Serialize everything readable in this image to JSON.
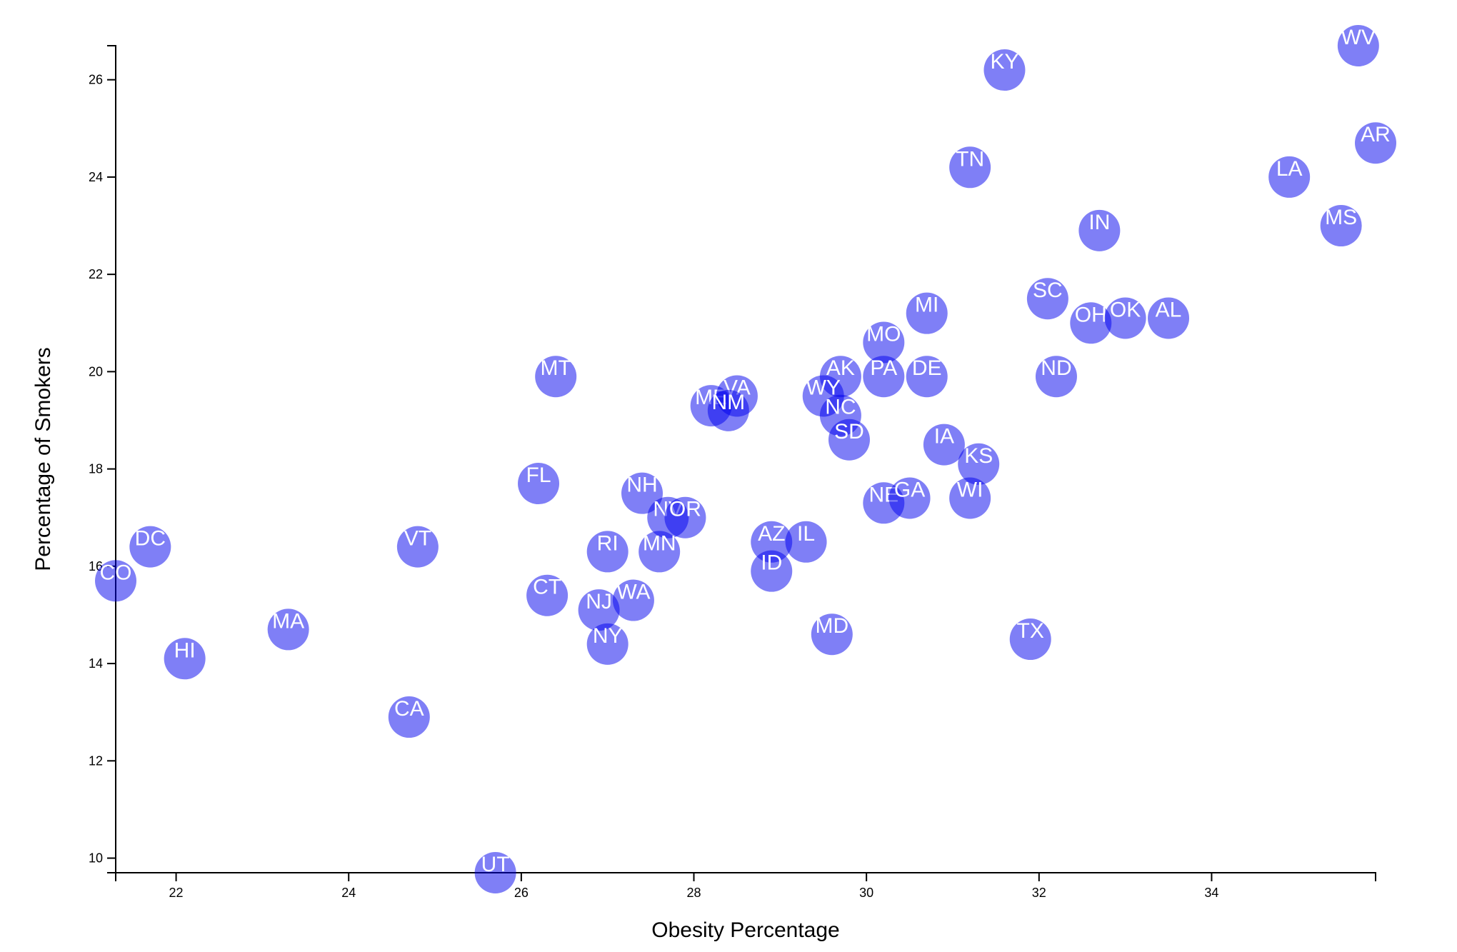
{
  "chart_data": {
    "type": "scatter",
    "title": "",
    "xlabel": "Obesity Percentage",
    "ylabel": "Percentage of Smokers",
    "xlim": [
      21.3,
      35.9
    ],
    "ylim": [
      9.7,
      26.7
    ],
    "x_ticks": [
      "22",
      "24",
      "26",
      "28",
      "30",
      "32",
      "34"
    ],
    "y_ticks": [
      "10",
      "12",
      "14",
      "16",
      "18",
      "20",
      "22",
      "24",
      "26"
    ],
    "grid": false,
    "point_color": "#0000ee",
    "label_color": "#ffffff",
    "points": [
      {
        "label": "WV",
        "x": 35.7,
        "y": 26.7
      },
      {
        "label": "KY",
        "x": 31.6,
        "y": 26.2
      },
      {
        "label": "AR",
        "x": 35.9,
        "y": 24.7
      },
      {
        "label": "TN",
        "x": 31.2,
        "y": 24.2
      },
      {
        "label": "LA",
        "x": 34.9,
        "y": 24.0
      },
      {
        "label": "MS",
        "x": 35.5,
        "y": 23.0
      },
      {
        "label": "IN",
        "x": 32.7,
        "y": 22.9
      },
      {
        "label": "SC",
        "x": 32.1,
        "y": 21.5
      },
      {
        "label": "MI",
        "x": 30.7,
        "y": 21.2
      },
      {
        "label": "OH",
        "x": 32.6,
        "y": 21.0
      },
      {
        "label": "OK",
        "x": 33.0,
        "y": 21.1
      },
      {
        "label": "AL",
        "x": 33.5,
        "y": 21.1
      },
      {
        "label": "MO",
        "x": 30.2,
        "y": 20.6
      },
      {
        "label": "AK",
        "x": 29.7,
        "y": 19.9
      },
      {
        "label": "PA",
        "x": 30.2,
        "y": 19.9
      },
      {
        "label": "DE",
        "x": 30.7,
        "y": 19.9
      },
      {
        "label": "ND",
        "x": 32.2,
        "y": 19.9
      },
      {
        "label": "MT",
        "x": 26.4,
        "y": 19.9
      },
      {
        "label": "ME",
        "x": 28.2,
        "y": 19.3
      },
      {
        "label": "VA",
        "x": 28.5,
        "y": 19.5
      },
      {
        "label": "NM",
        "x": 28.4,
        "y": 19.2
      },
      {
        "label": "WY",
        "x": 29.5,
        "y": 19.5
      },
      {
        "label": "NC",
        "x": 29.7,
        "y": 19.1
      },
      {
        "label": "SD",
        "x": 29.8,
        "y": 18.6
      },
      {
        "label": "IA",
        "x": 30.9,
        "y": 18.5
      },
      {
        "label": "KS",
        "x": 31.3,
        "y": 18.1
      },
      {
        "label": "FL",
        "x": 26.2,
        "y": 17.7
      },
      {
        "label": "NH",
        "x": 27.4,
        "y": 17.5
      },
      {
        "label": "NE",
        "x": 30.2,
        "y": 17.3
      },
      {
        "label": "GA",
        "x": 30.5,
        "y": 17.4
      },
      {
        "label": "WI",
        "x": 31.2,
        "y": 17.4
      },
      {
        "label": "NV",
        "x": 27.7,
        "y": 17.0
      },
      {
        "label": "OR",
        "x": 27.9,
        "y": 17.0
      },
      {
        "label": "AZ",
        "x": 28.9,
        "y": 16.5
      },
      {
        "label": "IL",
        "x": 29.3,
        "y": 16.5
      },
      {
        "label": "DC",
        "x": 21.7,
        "y": 16.4
      },
      {
        "label": "VT",
        "x": 24.8,
        "y": 16.4
      },
      {
        "label": "RI",
        "x": 27.0,
        "y": 16.3
      },
      {
        "label": "MN",
        "x": 27.6,
        "y": 16.3
      },
      {
        "label": "ID",
        "x": 28.9,
        "y": 15.9
      },
      {
        "label": "CO",
        "x": 21.3,
        "y": 15.7
      },
      {
        "label": "CT",
        "x": 26.3,
        "y": 15.4
      },
      {
        "label": "WA",
        "x": 27.3,
        "y": 15.3
      },
      {
        "label": "NJ",
        "x": 26.9,
        "y": 15.1
      },
      {
        "label": "MA",
        "x": 23.3,
        "y": 14.7
      },
      {
        "label": "MD",
        "x": 29.6,
        "y": 14.6
      },
      {
        "label": "TX",
        "x": 31.9,
        "y": 14.5
      },
      {
        "label": "NY",
        "x": 27.0,
        "y": 14.4
      },
      {
        "label": "HI",
        "x": 22.1,
        "y": 14.1
      },
      {
        "label": "CA",
        "x": 24.7,
        "y": 12.9
      },
      {
        "label": "UT",
        "x": 25.7,
        "y": 9.7
      }
    ]
  }
}
